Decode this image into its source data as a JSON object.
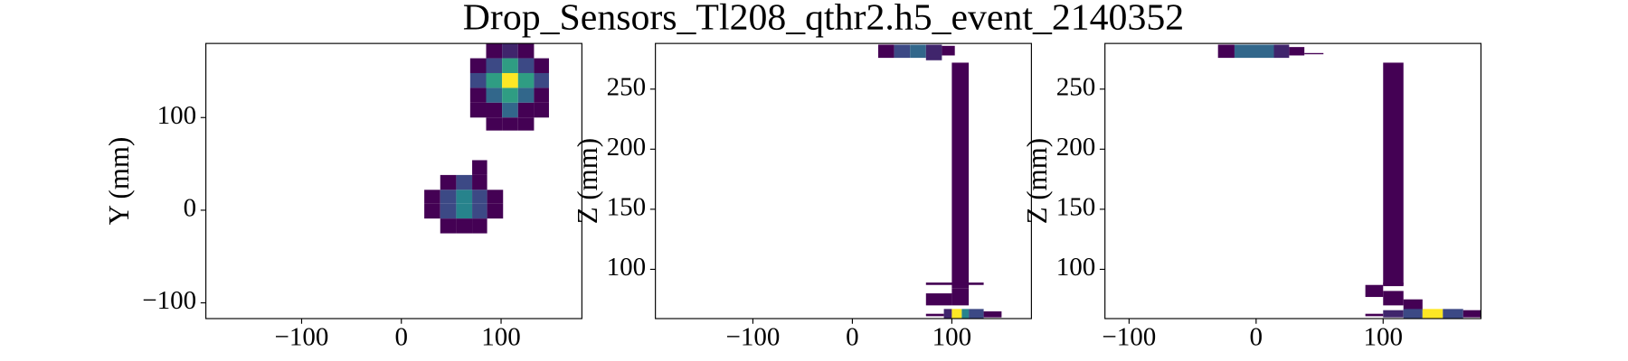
{
  "title": "Drop_Sensors_Tl208_qthr2.h5_event_2140352",
  "chart_data": [
    {
      "type": "heatmap",
      "ylabel": "Y (mm)",
      "colormap": "viridis",
      "xlim": [
        -196,
        181
      ],
      "ylim": [
        -117,
        180
      ],
      "xticks": [
        {
          "value": -100,
          "label": "−100"
        },
        0,
        100
      ],
      "yticks": [
        {
          "value": -100,
          "label": "−100"
        },
        0,
        100
      ],
      "x0": [
        85,
        101,
        117,
        69,
        85,
        101,
        117,
        133,
        69,
        85,
        101,
        117,
        133,
        69,
        85,
        101,
        117,
        133,
        69,
        85,
        101,
        117,
        133,
        85,
        101,
        117,
        71,
        39,
        55,
        71,
        23,
        39,
        55,
        71,
        86,
        23,
        39,
        55,
        71,
        86,
        39,
        55,
        71
      ],
      "x1": [
        101,
        117,
        133,
        85,
        101,
        117,
        133,
        148,
        85,
        101,
        117,
        133,
        148,
        85,
        101,
        117,
        133,
        148,
        85,
        101,
        117,
        133,
        148,
        101,
        117,
        133,
        86,
        55,
        71,
        86,
        39,
        55,
        71,
        86,
        102,
        39,
        55,
        71,
        86,
        102,
        55,
        71,
        86
      ],
      "y0": [
        164,
        164,
        164,
        148,
        148,
        148,
        148,
        148,
        132,
        132,
        132,
        132,
        132,
        116,
        116,
        116,
        116,
        116,
        100,
        100,
        100,
        100,
        100,
        86,
        86,
        86,
        38,
        22,
        22,
        22,
        7,
        7,
        7,
        7,
        7,
        -9,
        -9,
        -9,
        -9,
        -9,
        -25,
        -25,
        -25
      ],
      "y1": [
        180,
        180,
        180,
        164,
        164,
        164,
        164,
        164,
        148,
        148,
        148,
        148,
        148,
        132,
        132,
        132,
        132,
        132,
        116,
        116,
        116,
        116,
        116,
        100,
        100,
        100,
        54,
        38,
        38,
        38,
        22,
        22,
        22,
        22,
        22,
        7,
        7,
        7,
        7,
        7,
        -9,
        -9,
        -9
      ],
      "values": [
        1,
        2,
        1,
        1,
        3,
        6,
        3,
        1,
        3,
        6,
        10,
        6,
        3,
        1,
        4,
        6,
        4,
        1,
        1,
        1,
        4,
        1,
        1,
        1,
        1,
        1,
        1,
        1,
        3,
        1,
        1,
        3,
        5,
        3,
        1,
        1,
        3,
        5,
        3,
        1,
        1,
        1,
        1
      ]
    },
    {
      "type": "heatmap",
      "ylabel": "Z (mm)",
      "colormap": "viridis",
      "xlim": [
        -198,
        180
      ],
      "ylim": [
        59,
        288
      ],
      "xticks": [
        {
          "value": -100,
          "label": "−100"
        },
        0,
        100
      ],
      "yticks": [
        100,
        150,
        200,
        250
      ],
      "x0": [
        26,
        42,
        58,
        74,
        90,
        100,
        74,
        74,
        100,
        74,
        92,
        100,
        110,
        117,
        132
      ],
      "x1": [
        42,
        58,
        74,
        90,
        103,
        117,
        132,
        100,
        117,
        92,
        100,
        110,
        117,
        132,
        150
      ],
      "y0": [
        276,
        276,
        276,
        274,
        278,
        84,
        87,
        70,
        70,
        61,
        59,
        59,
        59,
        59,
        60
      ],
      "y1": [
        287,
        287,
        287,
        287,
        286,
        272,
        89,
        80,
        84,
        63,
        67,
        67,
        67,
        67,
        65
      ],
      "values": [
        1,
        3,
        4,
        2,
        1,
        1,
        1,
        1,
        1,
        1,
        2,
        10,
        5,
        3,
        1
      ]
    },
    {
      "type": "heatmap",
      "ylabel": "Z (mm)",
      "colormap": "viridis",
      "xlim": [
        -119,
        177
      ],
      "ylim": [
        59,
        288
      ],
      "xticks": [
        {
          "value": -100,
          "label": "−100"
        },
        0,
        100
      ],
      "yticks": [
        100,
        150,
        200,
        250
      ],
      "x0": [
        -30,
        -17,
        14,
        26,
        38,
        100,
        86,
        100,
        116,
        100,
        86,
        100,
        116,
        131,
        147,
        163
      ],
      "x1": [
        -17,
        14,
        26,
        38,
        53,
        116,
        100,
        116,
        131,
        116,
        100,
        116,
        131,
        147,
        163,
        177
      ],
      "y0": [
        276,
        276,
        276,
        278,
        279,
        86,
        77,
        70,
        66,
        87,
        61,
        60,
        59,
        59,
        59,
        60
      ],
      "y1": [
        287,
        287,
        287,
        285,
        280,
        272,
        87,
        82,
        75,
        89,
        63,
        66,
        67,
        67,
        67,
        66
      ],
      "values": [
        1,
        4,
        2,
        1,
        1,
        1,
        1,
        1,
        1,
        1,
        1,
        2,
        3,
        10,
        3,
        1
      ]
    }
  ]
}
